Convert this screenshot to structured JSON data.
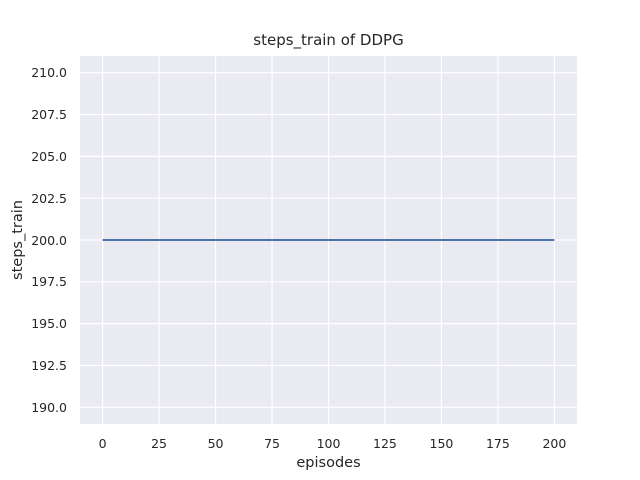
{
  "chart_data": {
    "type": "line",
    "title": "steps_train of DDPG",
    "xlabel": "episodes",
    "ylabel": "steps_train",
    "x_tick_labels": [
      "0",
      "25",
      "50",
      "75",
      "100",
      "125",
      "150",
      "175",
      "200"
    ],
    "y_tick_labels": [
      "190.0",
      "192.5",
      "195.0",
      "197.5",
      "200.0",
      "202.5",
      "205.0",
      "207.5",
      "210.0"
    ],
    "xlim": [
      -10,
      210
    ],
    "ylim": [
      189,
      211
    ],
    "grid": true,
    "legend": false,
    "series": [
      {
        "name": "steps_train",
        "x": [
          0,
          200
        ],
        "y": [
          200,
          200
        ],
        "color": "#4C72B0"
      }
    ],
    "colors": {
      "figure_background": "#ffffff",
      "plot_background": "#EAEAF2",
      "gridline": "#FFFFFF",
      "text": "#262626"
    }
  }
}
